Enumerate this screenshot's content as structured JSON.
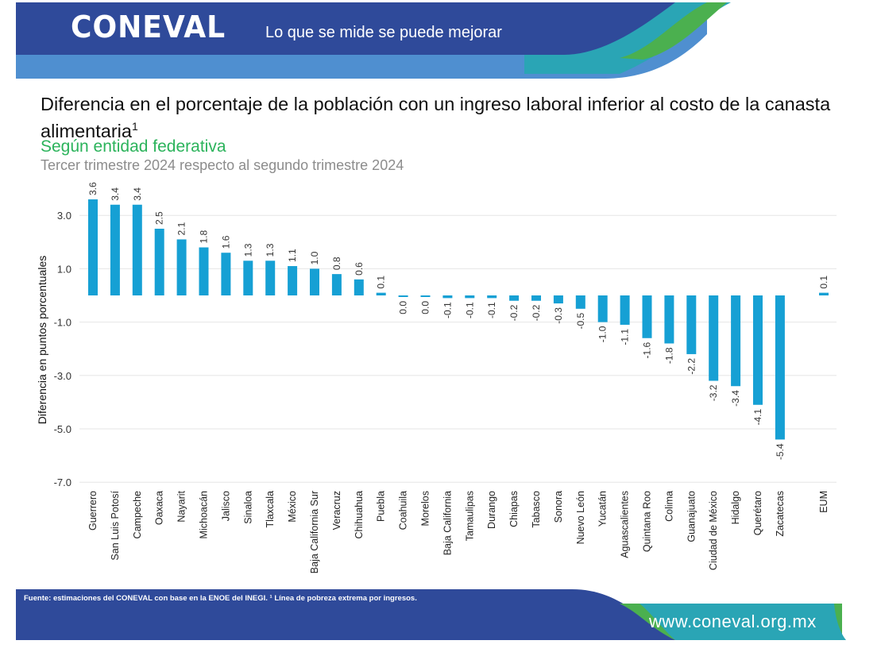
{
  "header": {
    "logo_text": "CONEVAL",
    "slogan": "Lo que se mide se puede mejorar",
    "colors": {
      "dark_blue": "#2f4a9a",
      "mid_blue": "#3c87c8",
      "teal": "#22a5b8",
      "green": "#45b04e"
    }
  },
  "titles": {
    "title": "Diferencia en el porcentaje de la población con un ingreso laboral inferior al costo de la canasta alimentaria",
    "title_sup": "1",
    "subtitle": "Según entidad federativa",
    "subtitle2": "Tercer trimestre 2024 respecto al segundo trimestre 2024"
  },
  "chart_data": {
    "type": "bar",
    "ylabel": "Diferencia en puntos porcentuales",
    "ylim": [
      -7.0,
      3.6
    ],
    "yticks": [
      "3.0",
      "1.0",
      "-1.0",
      "-3.0",
      "-5.0",
      "-7.0"
    ],
    "ytick_values": [
      3.0,
      1.0,
      -1.0,
      -3.0,
      -5.0,
      -7.0
    ],
    "grid": true,
    "bar_color": "#16a0d4",
    "categories": [
      "Guerrero",
      "San Luis Potosí",
      "Campeche",
      "Oaxaca",
      "Nayarit",
      "Michoacán",
      "Jalisco",
      "Sinaloa",
      "Tlaxcala",
      "México",
      "Baja California Sur",
      "Veracruz",
      "Chihuahua",
      "Puebla",
      "Coahuila",
      "Morelos",
      "Baja California",
      "Tamaulipas",
      "Durango",
      "Chiapas",
      "Tabasco",
      "Sonora",
      "Nuevo León",
      "Yucatán",
      "Aguascalientes",
      "Quintana Roo",
      "Colima",
      "Guanajuato",
      "Ciudad de México",
      "Hidalgo",
      "Querétaro",
      "Zacatecas",
      "EUM"
    ],
    "values": [
      3.6,
      3.4,
      3.4,
      2.5,
      2.1,
      1.8,
      1.6,
      1.3,
      1.3,
      1.1,
      1.0,
      0.8,
      0.6,
      0.1,
      -0.02,
      -0.02,
      -0.1,
      -0.1,
      -0.1,
      -0.2,
      -0.2,
      -0.3,
      -0.5,
      -1.0,
      -1.1,
      -1.6,
      -1.8,
      -2.2,
      -3.2,
      -3.4,
      -4.1,
      -5.4,
      0.1
    ],
    "labels": [
      "3.6",
      "3.4",
      "3.4",
      "2.5",
      "2.1",
      "1.8",
      "1.6",
      "1.3",
      "1.3",
      "1.1",
      "1.0",
      "0.8",
      "0.6",
      "0.1",
      "0.0",
      "0.0",
      "-0.1",
      "-0.1",
      "-0.1",
      "-0.2",
      "-0.2",
      "-0.3",
      "-0.5",
      "-1.0",
      "-1.1",
      "-1.6",
      "-1.8",
      "-2.2",
      "-3.2",
      "-3.4",
      "-4.1",
      "-5.4",
      "0.1"
    ]
  },
  "footer": {
    "source": "Fuente: estimaciones del CONEVAL con base en la ENOE del INEGI. ¹ Línea de pobreza extrema por ingresos.",
    "website": "www.coneval.org.mx"
  }
}
